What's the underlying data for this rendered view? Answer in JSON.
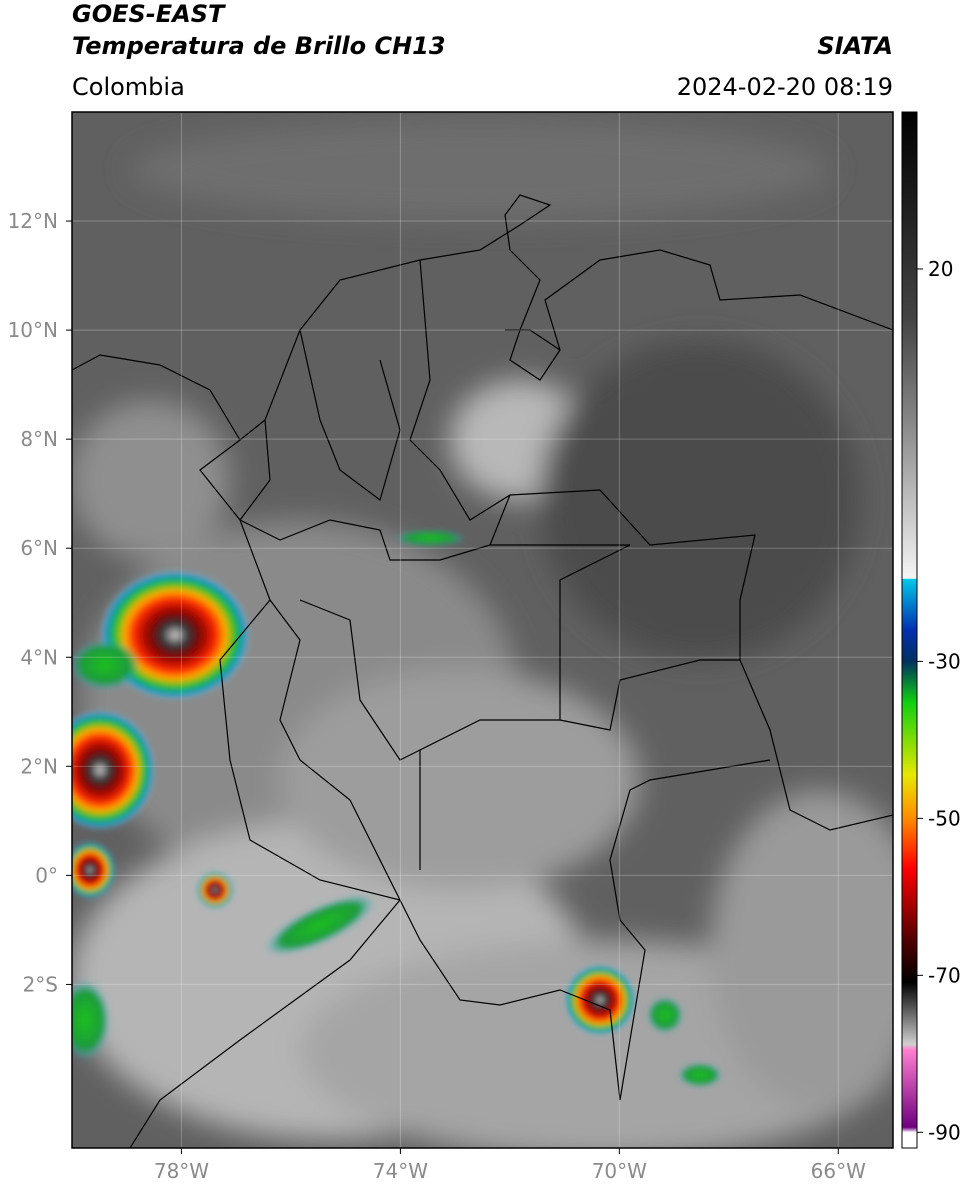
{
  "header": {
    "satellite": "GOES-EAST",
    "product": "Temperatura de Brillo CH13",
    "source": "SIATA",
    "region": "Colombia",
    "datetime": "2024-02-20 08:19"
  },
  "map": {
    "xlim": [
      -80,
      -65
    ],
    "ylim": [
      -5,
      14
    ],
    "lon_ticks": [
      {
        "value": -78,
        "label": "78°W"
      },
      {
        "value": -74,
        "label": "74°W"
      },
      {
        "value": -70,
        "label": "70°W"
      },
      {
        "value": -66,
        "label": "66°W"
      }
    ],
    "lat_ticks": [
      {
        "value": 12,
        "label": "12°N"
      },
      {
        "value": 10,
        "label": "10°N"
      },
      {
        "value": 8,
        "label": "8°N"
      },
      {
        "value": 6,
        "label": "6°N"
      },
      {
        "value": 4,
        "label": "4°N"
      },
      {
        "value": 2,
        "label": "2°N"
      },
      {
        "value": 0,
        "label": "0°"
      },
      {
        "value": -2,
        "label": "2°S"
      }
    ],
    "grid": true
  },
  "colorbar": {
    "lim": [
      -92,
      40
    ],
    "ticks": [
      20,
      -30,
      -50,
      -70,
      -90
    ]
  }
}
